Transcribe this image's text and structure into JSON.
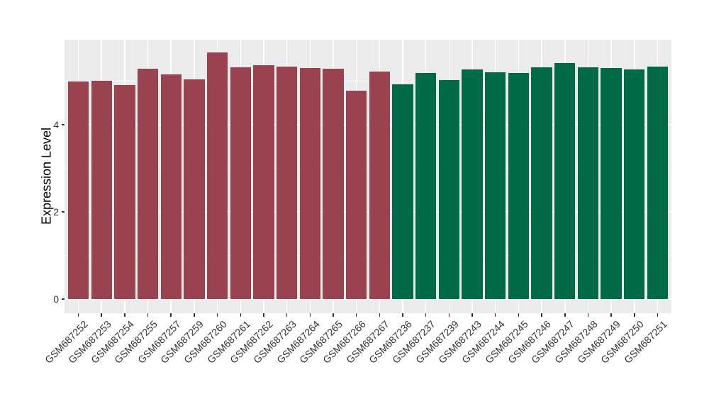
{
  "chart_data": {
    "type": "bar",
    "ylabel": "Expression Level",
    "yticks": [
      {
        "label": "0",
        "value": 0
      },
      {
        "label": "2",
        "value": 2
      },
      {
        "label": "4",
        "value": 4
      }
    ],
    "minor_gridline_values": [
      1,
      3,
      5
    ],
    "ylim": [
      0,
      5.95
    ],
    "grid": true,
    "legend_position": "none",
    "panel_background": "#EBEBEB",
    "gridline_color": "#FFFFFF",
    "groups": [
      {
        "name": "group-1",
        "color": "#9A4350"
      },
      {
        "name": "group-2",
        "color": "#006948"
      }
    ],
    "categories": [
      "GSM687252",
      "GSM687253",
      "GSM687254",
      "GSM687255",
      "GSM687257",
      "GSM687259",
      "GSM687260",
      "GSM687261",
      "GSM687262",
      "GSM687263",
      "GSM687264",
      "GSM687265",
      "GSM687266",
      "GSM687267",
      "GSM687236",
      "GSM687237",
      "GSM687239",
      "GSM687243",
      "GSM687244",
      "GSM687245",
      "GSM687246",
      "GSM687247",
      "GSM687248",
      "GSM687249",
      "GSM687250",
      "GSM687251"
    ],
    "values": [
      4.99,
      5.01,
      4.91,
      5.28,
      5.15,
      5.04,
      5.66,
      5.31,
      5.36,
      5.33,
      5.3,
      5.28,
      4.78,
      5.22,
      4.92,
      5.18,
      5.03,
      5.27,
      5.2,
      5.19,
      5.31,
      5.42,
      5.32,
      5.3,
      5.27,
      5.34
    ],
    "bar_group_index": [
      0,
      0,
      0,
      0,
      0,
      0,
      0,
      0,
      0,
      0,
      0,
      0,
      0,
      0,
      1,
      1,
      1,
      1,
      1,
      1,
      1,
      1,
      1,
      1,
      1,
      1
    ]
  }
}
